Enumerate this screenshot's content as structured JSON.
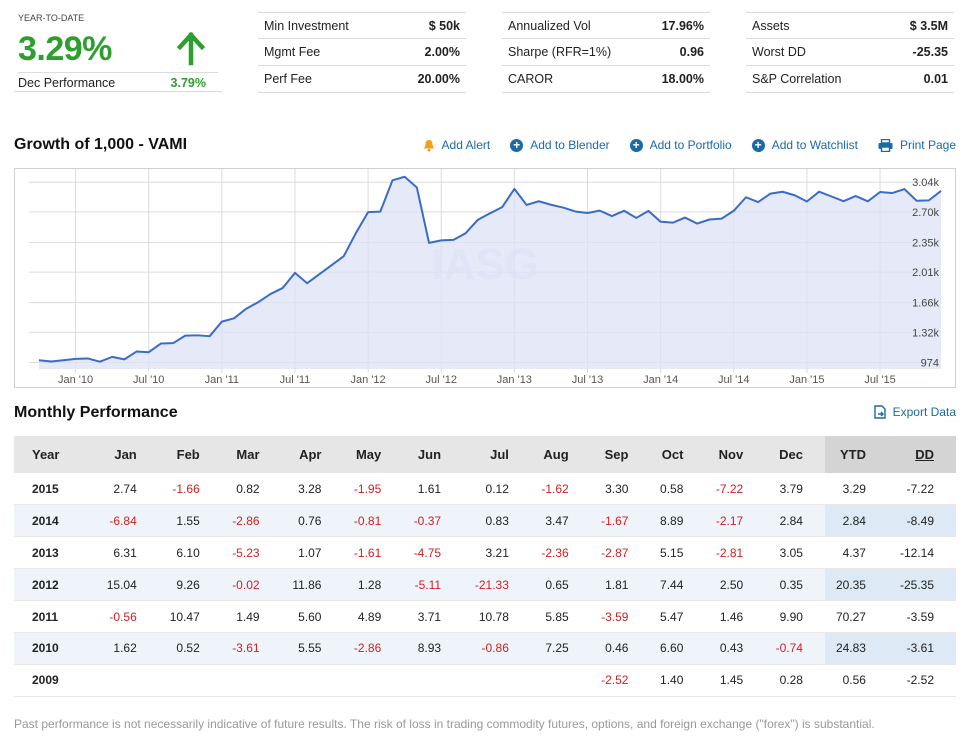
{
  "ytd": {
    "label": "YEAR-TO-DATE",
    "value": "3.29%",
    "dec_label": "Dec Performance",
    "dec_value": "3.79%",
    "arrow_icon": "up-arrow-icon"
  },
  "stats": [
    [
      {
        "label": "Min Investment",
        "value": "$ 50k"
      },
      {
        "label": "Mgmt Fee",
        "value": "2.00%"
      },
      {
        "label": "Perf Fee",
        "value": "20.00%"
      }
    ],
    [
      {
        "label": "Annualized Vol",
        "value": "17.96%"
      },
      {
        "label": "Sharpe (RFR=1%)",
        "value": "0.96"
      },
      {
        "label": "CAROR",
        "value": "18.00%"
      }
    ],
    [
      {
        "label": "Assets",
        "value": "$ 3.5M"
      },
      {
        "label": "Worst DD",
        "value": "-25.35"
      },
      {
        "label": "S&P Correlation",
        "value": "0.01"
      }
    ]
  ],
  "chart_header": {
    "title": "Growth of 1,000 - VAMI",
    "actions": [
      {
        "label": "Add Alert",
        "icon": "bell-icon"
      },
      {
        "label": "Add to Blender",
        "icon": "plus-circle-icon"
      },
      {
        "label": "Add to Portfolio",
        "icon": "plus-circle-icon"
      },
      {
        "label": "Add to Watchlist",
        "icon": "plus-circle-icon"
      },
      {
        "label": "Print Page",
        "icon": "printer-icon"
      }
    ]
  },
  "chart_data": {
    "type": "area",
    "title": "Growth of 1,000 - VAMI",
    "watermark": "IASG",
    "x": [
      "Oct '09",
      "Nov '09",
      "Dec '09",
      "Jan '10",
      "Feb '10",
      "Mar '10",
      "Apr '10",
      "May '10",
      "Jun '10",
      "Jul '10",
      "Aug '10",
      "Sep '10",
      "Oct '10",
      "Nov '10",
      "Dec '10",
      "Jan '11",
      "Feb '11",
      "Mar '11",
      "Apr '11",
      "May '11",
      "Jun '11",
      "Jul '11",
      "Aug '11",
      "Sep '11",
      "Oct '11",
      "Nov '11",
      "Dec '11",
      "Jan '12",
      "Feb '12",
      "Mar '12",
      "Apr '12",
      "May '12",
      "Jun '12",
      "Jul '12",
      "Aug '12",
      "Sep '12",
      "Oct '12",
      "Nov '12",
      "Dec '12",
      "Jan '13",
      "Feb '13",
      "Mar '13",
      "Apr '13",
      "May '13",
      "Jun '13",
      "Jul '13",
      "Aug '13",
      "Sep '13",
      "Oct '13",
      "Nov '13",
      "Dec '13",
      "Jan '14",
      "Feb '14",
      "Mar '14",
      "Apr '14",
      "May '14",
      "Jun '14",
      "Jul '14",
      "Aug '14",
      "Sep '14",
      "Oct '14",
      "Nov '14",
      "Dec '14",
      "Jan '15",
      "Feb '15",
      "Mar '15",
      "Apr '15",
      "May '15",
      "Jun '15",
      "Jul '15",
      "Aug '15",
      "Sep '15",
      "Oct '15",
      "Nov '15",
      "Dec '15"
    ],
    "values": [
      1000,
      986,
      1000,
      1016,
      1021,
      984,
      1039,
      1010,
      1100,
      1092,
      1192,
      1196,
      1282,
      1286,
      1276,
      1443,
      1481,
      1591,
      1667,
      1760,
      1829,
      2002,
      1883,
      1986,
      2089,
      2193,
      2458,
      2697,
      2703,
      3062,
      3103,
      2979,
      2345,
      2374,
      2379,
      2456,
      2609,
      2684,
      2755,
      2964,
      2780,
      2822,
      2782,
      2750,
      2705,
      2688,
      2715,
      2652,
      2713,
      2631,
      2712,
      2587,
      2577,
      2635,
      2566,
      2613,
      2623,
      2713,
      2868,
      2813,
      2909,
      2931,
      2891,
      2819,
      2932,
      2878,
      2823,
      2882,
      2821,
      2928,
      2916,
      2962,
      2828,
      2832,
      2940
    ],
    "x_tick_labels": [
      "Jan '10",
      "Jul '10",
      "Jan '11",
      "Jul '11",
      "Jan '12",
      "Jul '12",
      "Jan '13",
      "Jul '13",
      "Jan '14",
      "Jul '14",
      "Jan '15",
      "Jul '15"
    ],
    "y_tick_labels": [
      "974",
      "1.32k",
      "1.66k",
      "2.01k",
      "2.35k",
      "2.70k",
      "3.04k"
    ],
    "y_ticks": [
      974,
      1320,
      1660,
      2010,
      2350,
      2700,
      3040
    ],
    "ylim": [
      900,
      3100
    ],
    "grid": true,
    "line_color": "#3a6cc7",
    "fill_color": "#dde3f6"
  },
  "monthly": {
    "title": "Monthly Performance",
    "export_label": "Export Data",
    "export_icon": "export-icon",
    "headers": [
      "Year",
      "Jan",
      "Feb",
      "Mar",
      "Apr",
      "May",
      "Jun",
      "Jul",
      "Aug",
      "Sep",
      "Oct",
      "Nov",
      "Dec",
      "YTD",
      "DD"
    ],
    "rows": [
      [
        "2015",
        "2.74",
        "-1.66",
        "0.82",
        "3.28",
        "-1.95",
        "1.61",
        "0.12",
        "-1.62",
        "3.30",
        "0.58",
        "-7.22",
        "3.79",
        "3.29",
        "-7.22"
      ],
      [
        "2014",
        "-6.84",
        "1.55",
        "-2.86",
        "0.76",
        "-0.81",
        "-0.37",
        "0.83",
        "3.47",
        "-1.67",
        "8.89",
        "-2.17",
        "2.84",
        "2.84",
        "-8.49"
      ],
      [
        "2013",
        "6.31",
        "6.10",
        "-5.23",
        "1.07",
        "-1.61",
        "-4.75",
        "3.21",
        "-2.36",
        "-2.87",
        "5.15",
        "-2.81",
        "3.05",
        "4.37",
        "-12.14"
      ],
      [
        "2012",
        "15.04",
        "9.26",
        "-0.02",
        "11.86",
        "1.28",
        "-5.11",
        "-21.33",
        "0.65",
        "1.81",
        "7.44",
        "2.50",
        "0.35",
        "20.35",
        "-25.35"
      ],
      [
        "2011",
        "-0.56",
        "10.47",
        "1.49",
        "5.60",
        "4.89",
        "3.71",
        "10.78",
        "5.85",
        "-3.59",
        "5.47",
        "1.46",
        "9.90",
        "70.27",
        "-3.59"
      ],
      [
        "2010",
        "1.62",
        "0.52",
        "-3.61",
        "5.55",
        "-2.86",
        "8.93",
        "-0.86",
        "7.25",
        "0.46",
        "6.60",
        "0.43",
        "-0.74",
        "24.83",
        "-3.61"
      ],
      [
        "2009",
        "",
        "",
        "",
        "",
        "",
        "",
        "",
        "",
        "-2.52",
        "1.40",
        "1.45",
        "0.28",
        "0.56",
        "-2.52"
      ]
    ]
  },
  "disclaimer": "Past performance is not necessarily indicative of future results. The risk of loss in trading commodity futures, options, and foreign exchange (\"forex\") is substantial."
}
